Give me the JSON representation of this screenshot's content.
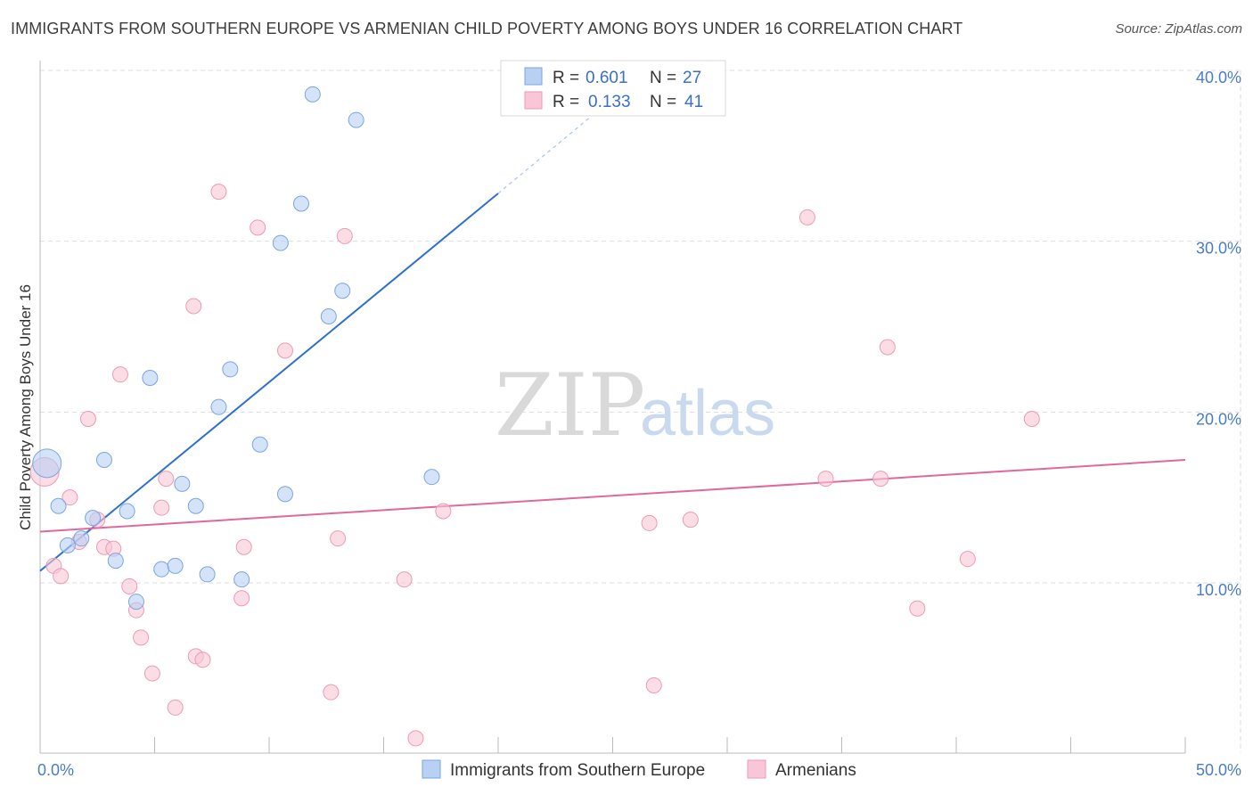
{
  "title": "IMMIGRANTS FROM SOUTHERN EUROPE VS ARMENIAN CHILD POVERTY AMONG BOYS UNDER 16 CORRELATION CHART",
  "source": "Source: ZipAtlas.com",
  "watermark": {
    "zip": "ZIP",
    "atlas": "atlas"
  },
  "colors": {
    "blue_fill": "#b8d0f2",
    "blue_stroke": "#7aa6e3",
    "blue_line": "#2f6fcf",
    "pink_fill": "#f8c6d6",
    "pink_stroke": "#ee9ab6",
    "pink_line": "#e0689a",
    "grid": "#dddddd",
    "tick_label": "#4a7cc7"
  },
  "legend": {
    "rows": [
      {
        "r_label": "R =",
        "r_value": "0.601",
        "n_label": "N =",
        "n_value": "27"
      },
      {
        "r_label": "R =",
        "r_value": "0.133",
        "n_label": "N =",
        "n_value": "41"
      }
    ]
  },
  "chart_data": {
    "type": "scatter",
    "title": "IMMIGRANTS FROM SOUTHERN EUROPE VS ARMENIAN CHILD POVERTY AMONG BOYS UNDER 16 CORRELATION CHART",
    "xlabel": "",
    "ylabel": "Child Poverty Among Boys Under 16",
    "xlim": [
      0,
      50
    ],
    "ylim": [
      0,
      41
    ],
    "x_tick_labels": [
      {
        "value": 0,
        "label": "0.0%"
      },
      {
        "value": 50,
        "label": "50.0%"
      }
    ],
    "y_tick_labels": [
      {
        "value": 10,
        "label": "10.0%"
      },
      {
        "value": 20,
        "label": "20.0%"
      },
      {
        "value": 30,
        "label": "30.0%"
      },
      {
        "value": 40,
        "label": "40.0%"
      }
    ],
    "grid": true,
    "legend_position": "top-center",
    "series": [
      {
        "name": "Immigrants from Southern Europe",
        "color": "#b8d0f2",
        "points": [
          {
            "x": 0.3,
            "y": 17.0,
            "size": 16
          },
          {
            "x": 0.8,
            "y": 14.5
          },
          {
            "x": 1.2,
            "y": 12.2
          },
          {
            "x": 1.8,
            "y": 12.6
          },
          {
            "x": 2.3,
            "y": 13.8
          },
          {
            "x": 2.8,
            "y": 17.2
          },
          {
            "x": 3.3,
            "y": 11.3
          },
          {
            "x": 3.8,
            "y": 14.2
          },
          {
            "x": 4.2,
            "y": 8.9
          },
          {
            "x": 4.8,
            "y": 22.0
          },
          {
            "x": 5.3,
            "y": 10.8
          },
          {
            "x": 5.9,
            "y": 11.0
          },
          {
            "x": 6.2,
            "y": 15.8
          },
          {
            "x": 6.8,
            "y": 14.5
          },
          {
            "x": 7.3,
            "y": 10.5
          },
          {
            "x": 7.8,
            "y": 20.3
          },
          {
            "x": 8.3,
            "y": 22.5
          },
          {
            "x": 8.8,
            "y": 10.2
          },
          {
            "x": 9.6,
            "y": 18.1
          },
          {
            "x": 10.5,
            "y": 29.9
          },
          {
            "x": 10.7,
            "y": 15.2
          },
          {
            "x": 11.4,
            "y": 32.2
          },
          {
            "x": 11.9,
            "y": 38.6
          },
          {
            "x": 12.6,
            "y": 25.6
          },
          {
            "x": 13.2,
            "y": 27.1
          },
          {
            "x": 13.8,
            "y": 37.1
          },
          {
            "x": 17.1,
            "y": 16.2
          }
        ],
        "trend": {
          "x0": 0,
          "y0": 10.7,
          "x1": 20,
          "y1": 32.8,
          "dashed_to_x": 24.5,
          "dashed_to_y": 37.8
        }
      },
      {
        "name": "Armenians",
        "color": "#f8c6d6",
        "points": [
          {
            "x": 0.2,
            "y": 16.5,
            "size": 16
          },
          {
            "x": 0.6,
            "y": 11.0
          },
          {
            "x": 0.9,
            "y": 10.4
          },
          {
            "x": 1.3,
            "y": 15.0
          },
          {
            "x": 1.7,
            "y": 12.4
          },
          {
            "x": 2.1,
            "y": 19.6
          },
          {
            "x": 2.5,
            "y": 13.7
          },
          {
            "x": 2.8,
            "y": 12.1
          },
          {
            "x": 3.2,
            "y": 12.0
          },
          {
            "x": 3.5,
            "y": 22.2
          },
          {
            "x": 3.9,
            "y": 9.8
          },
          {
            "x": 4.2,
            "y": 8.4
          },
          {
            "x": 4.4,
            "y": 6.8
          },
          {
            "x": 4.9,
            "y": 4.7
          },
          {
            "x": 5.3,
            "y": 14.4
          },
          {
            "x": 5.5,
            "y": 16.1
          },
          {
            "x": 5.9,
            "y": 2.7
          },
          {
            "x": 6.7,
            "y": 26.2
          },
          {
            "x": 6.8,
            "y": 5.7
          },
          {
            "x": 7.1,
            "y": 5.5
          },
          {
            "x": 7.8,
            "y": 32.9
          },
          {
            "x": 8.8,
            "y": 9.1
          },
          {
            "x": 8.9,
            "y": 12.1
          },
          {
            "x": 9.5,
            "y": 30.8
          },
          {
            "x": 10.7,
            "y": 23.6
          },
          {
            "x": 12.7,
            "y": 3.6
          },
          {
            "x": 13.0,
            "y": 12.6
          },
          {
            "x": 13.3,
            "y": 30.3
          },
          {
            "x": 15.9,
            "y": 10.2
          },
          {
            "x": 16.4,
            "y": 0.9
          },
          {
            "x": 17.6,
            "y": 14.2
          },
          {
            "x": 26.6,
            "y": 13.5
          },
          {
            "x": 26.8,
            "y": 4.0
          },
          {
            "x": 28.4,
            "y": 13.7
          },
          {
            "x": 33.5,
            "y": 31.4
          },
          {
            "x": 34.3,
            "y": 16.1
          },
          {
            "x": 36.7,
            "y": 16.1
          },
          {
            "x": 37.0,
            "y": 23.8
          },
          {
            "x": 38.3,
            "y": 8.5
          },
          {
            "x": 40.5,
            "y": 11.4
          },
          {
            "x": 43.3,
            "y": 19.6
          }
        ],
        "trend": {
          "x0": 0,
          "y0": 13.0,
          "x1": 50,
          "y1": 17.2
        }
      }
    ]
  }
}
